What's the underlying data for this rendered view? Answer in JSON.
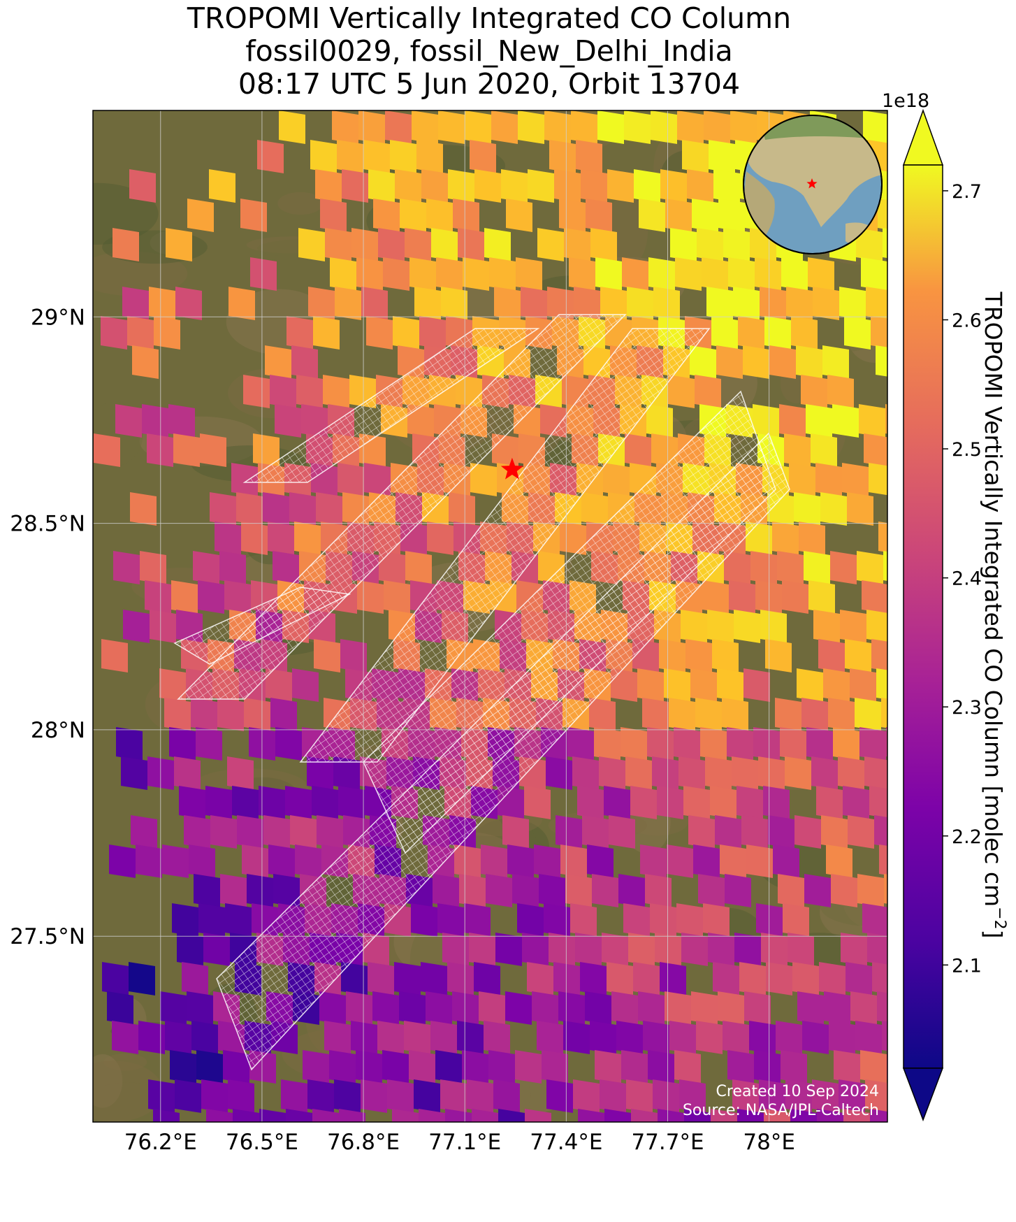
{
  "title": {
    "line1": "TROPOMI Vertically Integrated CO Column",
    "line2": "fossil0029, fossil_New_Delhi_India",
    "line3": "08:17 UTC 5 Jun 2020, Orbit 13704"
  },
  "map": {
    "lon_range": [
      76.0,
      78.35
    ],
    "lat_range": [
      27.05,
      29.5
    ],
    "lon_ticks": [
      "76.2°E",
      "76.5°E",
      "76.8°E",
      "77.1°E",
      "77.4°E",
      "77.7°E",
      "78°E"
    ],
    "lat_ticks": [
      "29°N",
      "28.5°N",
      "28°N",
      "27.5°N"
    ],
    "target_marker": {
      "lon": 77.24,
      "lat": 28.63,
      "color": "#ff0000",
      "icon": "star-icon"
    },
    "basemap_colors": [
      "#6f6a3c",
      "#7d6b43",
      "#4f5a30",
      "#8a7550"
    ],
    "target_overlay_color": "#ffffff",
    "inset_globe": {
      "icon": "globe-icon",
      "ocean_color": "#6f9fc0",
      "land_color": "#c7b98a",
      "marker_color": "#ff0000"
    }
  },
  "colorbar": {
    "label": "TROPOMI Vertically Integrated CO Column [molec cm",
    "label_sup": "−2",
    "label_end": "]",
    "multiplier": "1e18",
    "ticks": [
      "2.1",
      "2.2",
      "2.3",
      "2.4",
      "2.5",
      "2.6",
      "2.7"
    ],
    "range": [
      2.02,
      2.72
    ],
    "colormap": "plasma",
    "extend": "both"
  },
  "credits": {
    "line1": "Created 10 Sep 2024",
    "line2": "Source: NASA/JPL-Caltech"
  }
}
